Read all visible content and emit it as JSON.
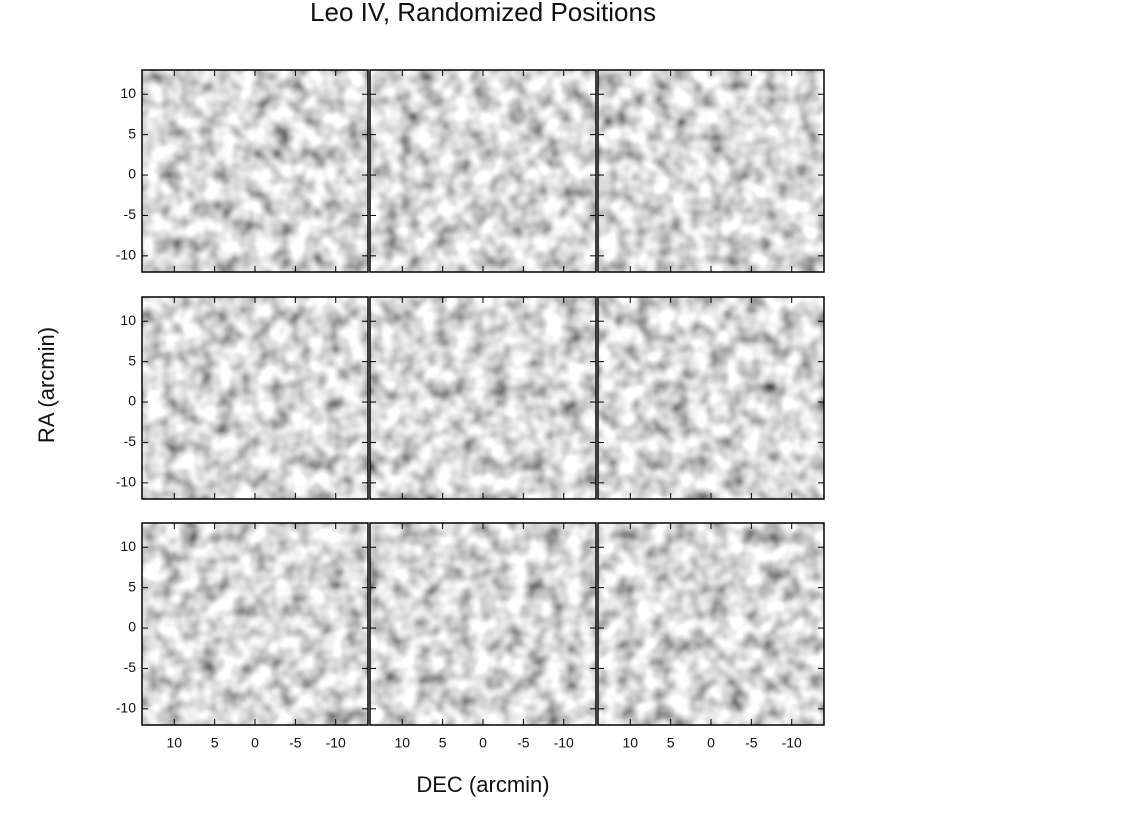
{
  "chart_data": {
    "type": "image-grid",
    "title": "Leo IV, Randomized Positions",
    "xlabel": "DEC (arcmin)",
    "ylabel": "RA (arcmin)",
    "xlim": [
      14,
      -14
    ],
    "ylim": [
      -12,
      13
    ],
    "xticks": [
      10,
      5,
      0,
      -5,
      -10
    ],
    "yticks": [
      10,
      5,
      0,
      -5,
      -10
    ]
  }
}
